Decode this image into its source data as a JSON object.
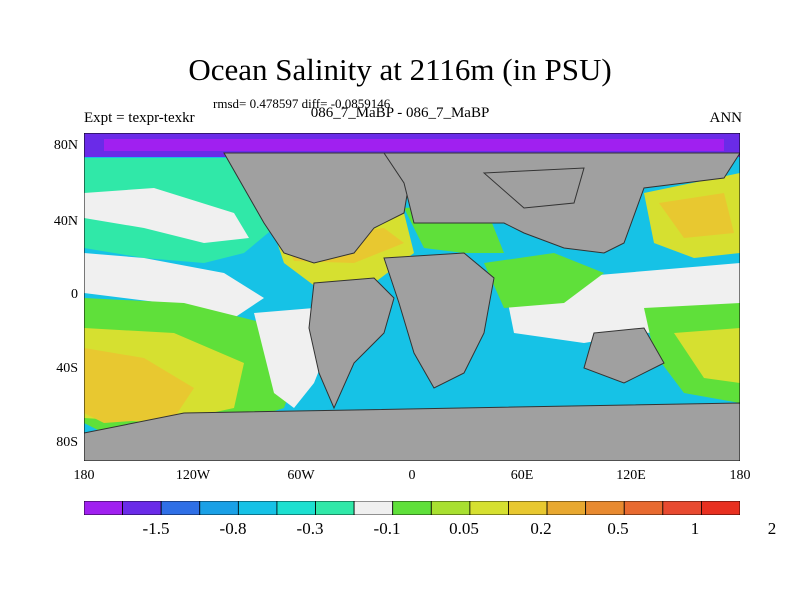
{
  "title": "Ocean Salinity at 2116m (in PSU)",
  "stats": "rmsd= 0.478597 diff= -0.0859146",
  "subtitle": "086_7_MaBP - 086_7_MaBP",
  "expt": "Expt = texpr-texkr",
  "season": "ANN",
  "lat_labels": [
    "80N",
    "40N",
    "0",
    "40S",
    "80S"
  ],
  "lon_labels": [
    "180",
    "120W",
    "60W",
    "0",
    "60E",
    "120E",
    "180"
  ],
  "colorbar": {
    "colors": [
      "#a020f0",
      "#6a2be8",
      "#2f6fe6",
      "#1aa0e6",
      "#16c2e6",
      "#1ce0d0",
      "#30e8a8",
      "#f0f0f0",
      "#5fe03a",
      "#a8e030",
      "#d6e030",
      "#e8c830",
      "#e8a830",
      "#e88a30",
      "#e86a30",
      "#e84a30",
      "#e83020"
    ],
    "labels": [
      "-1.5",
      "-0.8",
      "-0.3",
      "-0.1",
      "0.05",
      "0.2",
      "0.5",
      "1",
      "2"
    ]
  },
  "land_color": "#a0a0a0"
}
